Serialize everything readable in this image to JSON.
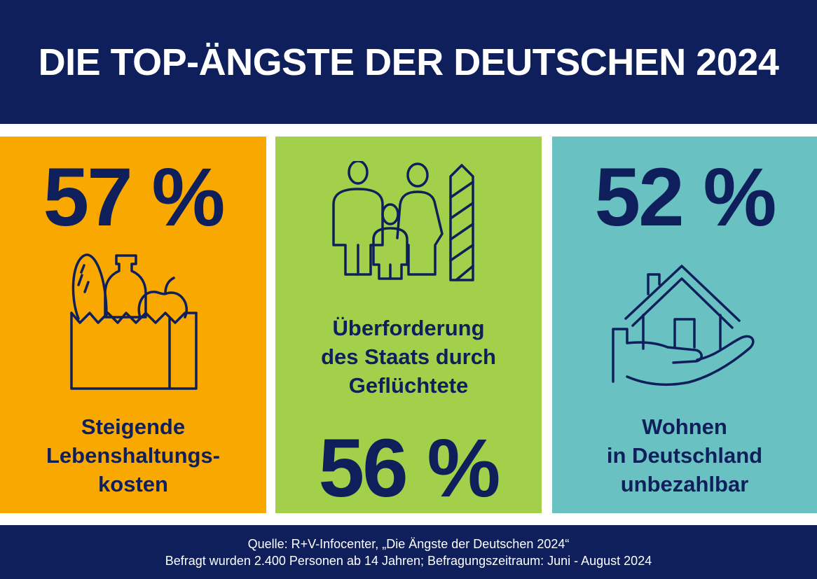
{
  "header": {
    "title": "DIE TOP-ÄNGSTE DER DEUTSCHEN 2024"
  },
  "panels": [
    {
      "percent": "57 %",
      "label_lines": [
        "Steigende",
        "Lebenshaltungs-",
        "kosten"
      ],
      "icon": "grocery-bag-icon",
      "color": "#f9a800"
    },
    {
      "percent": "56 %",
      "label_lines": [
        "Überforderung",
        "des Staats durch",
        "Geflüchtete"
      ],
      "icon": "family-border-icon",
      "color": "#a2d04b"
    },
    {
      "percent": "52 %",
      "label_lines": [
        "Wohnen",
        "in Deutschland",
        "unbezahlbar"
      ],
      "icon": "house-hand-icon",
      "color": "#6ac1c1"
    }
  ],
  "footer": {
    "source": "Quelle: R+V-Infocenter, „Die Ängste der Deutschen 2024“",
    "note": "Befragt wurden 2.400 Personen ab 14 Jahren; Befragungszeitraum: Juni - August 2024"
  },
  "colors": {
    "navy": "#0e1f5b",
    "text_light": "#ffffff"
  }
}
